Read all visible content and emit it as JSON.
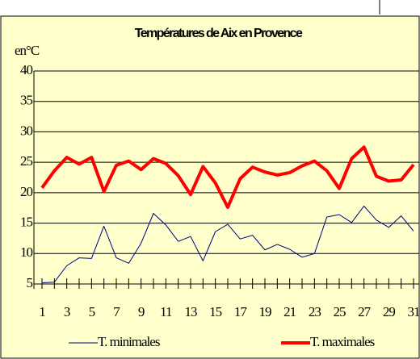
{
  "chart_data": {
    "type": "line",
    "title": "Températures de Aix en Provence",
    "y_label": "en°C",
    "categories": [
      1,
      null,
      3,
      null,
      5,
      null,
      7,
      null,
      9,
      null,
      11,
      null,
      13,
      null,
      15,
      null,
      17,
      null,
      19,
      null,
      21,
      null,
      23,
      null,
      25,
      null,
      27,
      null,
      29,
      null,
      31
    ],
    "series": [
      {
        "name": "T. minimales",
        "color": "#000080",
        "width": 1,
        "values": [
          5.2,
          5.3,
          8.0,
          9.3,
          9.2,
          14.5,
          9.3,
          8.4,
          11.7,
          16.6,
          14.7,
          12.0,
          12.8,
          8.8,
          13.6,
          14.8,
          12.4,
          13.0,
          10.6,
          11.5,
          10.7,
          9.4,
          10.0,
          16.0,
          16.4,
          15.1,
          17.8,
          15.5,
          14.3,
          16.2,
          13.7
        ]
      },
      {
        "name": "T. maximales",
        "color": "#ff0000",
        "width": 4,
        "values": [
          20.8,
          23.6,
          25.8,
          24.7,
          25.8,
          20.2,
          24.5,
          25.2,
          23.8,
          25.6,
          24.8,
          22.8,
          19.7,
          24.3,
          21.6,
          17.6,
          22.3,
          24.2,
          23.4,
          22.9,
          23.3,
          24.4,
          25.2,
          23.6,
          20.7,
          25.6,
          27.5,
          22.7,
          21.9,
          22.1,
          24.6
        ]
      }
    ],
    "ylim": [
      5,
      40
    ],
    "yticks": [
      5,
      10,
      15,
      20,
      25,
      30,
      35,
      40
    ],
    "grid": true
  }
}
